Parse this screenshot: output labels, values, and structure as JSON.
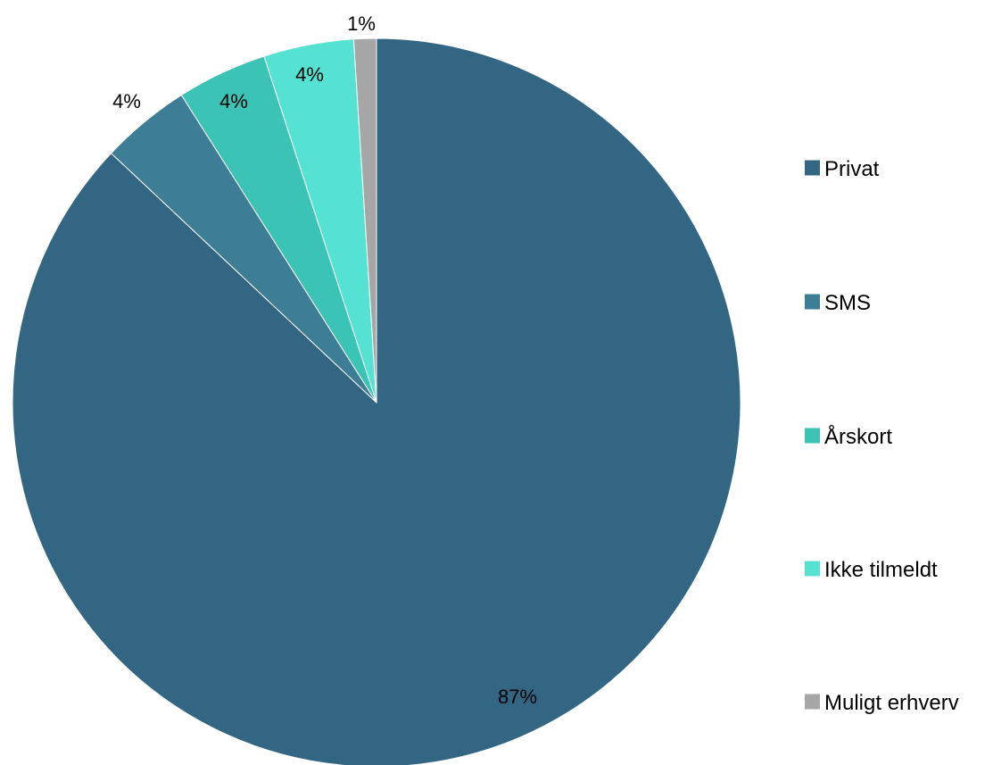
{
  "chart_data": {
    "type": "pie",
    "title": "",
    "slices": [
      {
        "label": "Privat",
        "value": 87,
        "value_label": "87%",
        "color": "#336683"
      },
      {
        "label": "SMS",
        "value": 4,
        "value_label": "4%",
        "color": "#3d7e96"
      },
      {
        "label": "Årskort",
        "value": 4,
        "value_label": "4%",
        "color": "#3bc3b6"
      },
      {
        "label": "Ikke tilmeldt",
        "value": 4,
        "value_label": "4%",
        "color": "#55e2d2"
      },
      {
        "label": "Muligt erhverv",
        "value": 1,
        "value_label": "1%",
        "color": "#a6a6a6"
      }
    ],
    "legend": {
      "position": "right"
    },
    "start_angle": "12 o'clock",
    "direction": "clockwise"
  }
}
